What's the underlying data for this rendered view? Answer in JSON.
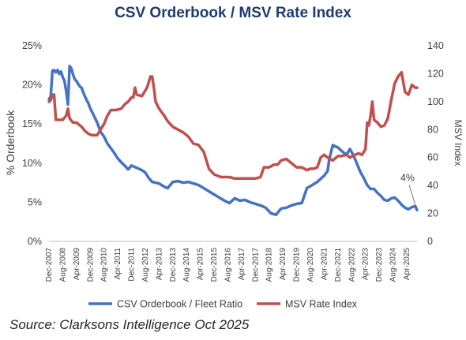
{
  "title": "CSV Orderbook / MSV Rate Index",
  "source": "Source: Clarksons Intelligence Oct 2025",
  "chart_data": {
    "type": "line",
    "title": "CSV Orderbook / MSV Rate Index",
    "x_ticks": [
      "Dec-2007",
      "Aug-2008",
      "Apr-2009",
      "Dec-2009",
      "Aug-2010",
      "Apr-2011",
      "Dec-2011",
      "Aug-2012",
      "Apr-2013",
      "Dec-2013",
      "Aug-2014",
      "Apr-2015",
      "Dec-2015",
      "Aug-2016",
      "Apr-2017",
      "Dec-2017",
      "Aug-2018",
      "Apr-2019",
      "Dec-2019",
      "Aug-2020",
      "Apr-2021",
      "Dec-2021",
      "Aug-2022",
      "Apr-2023",
      "Dec-2023",
      "Aug-2024",
      "Apr-2025"
    ],
    "x_range": [
      "2007-12",
      "2025-10"
    ],
    "y_left": {
      "label": "% Orderbook",
      "ticks": [
        "0%",
        "5%",
        "10%",
        "15%",
        "20%",
        "25%"
      ],
      "range": [
        0,
        25
      ],
      "unit": "%"
    },
    "y_right": {
      "label": "MSV Index",
      "ticks": [
        "0",
        "20",
        "40",
        "60",
        "80",
        "100",
        "120",
        "140"
      ],
      "range": [
        0,
        140
      ]
    },
    "grid": false,
    "legend_position": "bottom",
    "annotation": "4%",
    "colors": {
      "orderbook": "#4472c4",
      "msv": "#c0504d",
      "title": "#1f3b6e"
    },
    "series": [
      {
        "name": "CSV Orderbook / Fleet Ratio",
        "axis": "left",
        "points": [
          [
            "2007-12",
            18.2
          ],
          [
            "2008-01",
            18.5
          ],
          [
            "2008-02",
            21.8
          ],
          [
            "2008-03",
            21.9
          ],
          [
            "2008-04",
            21.6
          ],
          [
            "2008-05",
            21.9
          ],
          [
            "2008-06",
            21.4
          ],
          [
            "2008-07",
            21.7
          ],
          [
            "2008-08",
            21.0
          ],
          [
            "2008-09",
            20.5
          ],
          [
            "2008-10",
            19.2
          ],
          [
            "2008-11",
            17.5
          ],
          [
            "2008-12",
            22.4
          ],
          [
            "2009-01",
            22.1
          ],
          [
            "2009-02",
            21.3
          ],
          [
            "2009-03",
            20.7
          ],
          [
            "2009-04",
            20.5
          ],
          [
            "2009-05",
            20.1
          ],
          [
            "2009-06",
            19.8
          ],
          [
            "2009-07",
            19.6
          ],
          [
            "2009-08",
            19.0
          ],
          [
            "2009-09",
            18.5
          ],
          [
            "2009-10",
            18.0
          ],
          [
            "2009-11",
            17.6
          ],
          [
            "2009-12",
            17.0
          ],
          [
            "2010-02",
            16.1
          ],
          [
            "2010-04",
            15.2
          ],
          [
            "2010-06",
            14.0
          ],
          [
            "2010-08",
            13.4
          ],
          [
            "2010-10",
            12.5
          ],
          [
            "2010-12",
            11.9
          ],
          [
            "2011-02",
            11.3
          ],
          [
            "2011-04",
            10.6
          ],
          [
            "2011-06",
            10.1
          ],
          [
            "2011-08",
            9.7
          ],
          [
            "2011-10",
            9.2
          ],
          [
            "2011-12",
            9.7
          ],
          [
            "2012-02",
            9.5
          ],
          [
            "2012-04",
            9.3
          ],
          [
            "2012-06",
            9.1
          ],
          [
            "2012-08",
            8.8
          ],
          [
            "2012-10",
            8.1
          ],
          [
            "2012-12",
            7.6
          ],
          [
            "2013-04",
            7.4
          ],
          [
            "2013-07",
            7.0
          ],
          [
            "2013-09",
            6.8
          ],
          [
            "2013-12",
            7.6
          ],
          [
            "2014-03",
            7.7
          ],
          [
            "2014-06",
            7.5
          ],
          [
            "2014-09",
            7.6
          ],
          [
            "2014-12",
            7.4
          ],
          [
            "2015-03",
            7.2
          ],
          [
            "2015-06",
            6.8
          ],
          [
            "2015-09",
            6.4
          ],
          [
            "2015-12",
            6.0
          ],
          [
            "2016-03",
            5.6
          ],
          [
            "2016-06",
            5.2
          ],
          [
            "2016-09",
            4.9
          ],
          [
            "2016-12",
            5.5
          ],
          [
            "2017-03",
            5.2
          ],
          [
            "2017-06",
            5.3
          ],
          [
            "2017-09",
            5.0
          ],
          [
            "2017-12",
            4.8
          ],
          [
            "2018-03",
            4.6
          ],
          [
            "2018-06",
            4.3
          ],
          [
            "2018-09",
            3.6
          ],
          [
            "2018-12",
            3.4
          ],
          [
            "2019-03",
            4.2
          ],
          [
            "2019-06",
            4.3
          ],
          [
            "2019-09",
            4.6
          ],
          [
            "2019-12",
            4.8
          ],
          [
            "2020-03",
            4.9
          ],
          [
            "2020-06",
            6.8
          ],
          [
            "2020-09",
            7.2
          ],
          [
            "2020-12",
            7.6
          ],
          [
            "2021-02",
            8.0
          ],
          [
            "2021-04",
            8.4
          ],
          [
            "2021-06",
            9.0
          ],
          [
            "2021-07",
            10.5
          ],
          [
            "2021-09",
            12.3
          ],
          [
            "2021-12",
            12.0
          ],
          [
            "2022-03",
            11.4
          ],
          [
            "2022-05",
            11.1
          ],
          [
            "2022-07",
            11.8
          ],
          [
            "2022-09",
            11.0
          ],
          [
            "2022-10",
            10.5
          ],
          [
            "2023-01",
            8.9
          ],
          [
            "2023-03",
            8.1
          ],
          [
            "2023-05",
            7.2
          ],
          [
            "2023-07",
            6.7
          ],
          [
            "2023-09",
            6.7
          ],
          [
            "2023-11",
            6.2
          ],
          [
            "2024-01",
            5.8
          ],
          [
            "2024-03",
            5.3
          ],
          [
            "2024-05",
            5.2
          ],
          [
            "2024-07",
            5.5
          ],
          [
            "2024-09",
            5.6
          ],
          [
            "2024-11",
            5.2
          ],
          [
            "2025-01",
            4.7
          ],
          [
            "2025-03",
            4.3
          ],
          [
            "2025-05",
            4.1
          ],
          [
            "2025-07",
            4.4
          ],
          [
            "2025-09",
            4.5
          ],
          [
            "2025-10",
            4.0
          ]
        ]
      },
      {
        "name": "MSV Rate Index",
        "axis": "right",
        "points": [
          [
            "2007-12",
            100
          ],
          [
            "2008-01",
            101
          ],
          [
            "2008-02",
            105
          ],
          [
            "2008-03",
            105
          ],
          [
            "2008-04",
            87
          ],
          [
            "2008-06",
            87
          ],
          [
            "2008-08",
            87
          ],
          [
            "2008-10",
            90
          ],
          [
            "2008-11",
            95
          ],
          [
            "2008-12",
            88
          ],
          [
            "2009-02",
            85
          ],
          [
            "2009-04",
            85
          ],
          [
            "2009-06",
            83
          ],
          [
            "2009-07",
            82
          ],
          [
            "2009-09",
            79
          ],
          [
            "2009-11",
            77
          ],
          [
            "2010-01",
            76
          ],
          [
            "2010-04",
            76
          ],
          [
            "2010-06",
            80
          ],
          [
            "2010-08",
            84
          ],
          [
            "2010-10",
            90
          ],
          [
            "2010-12",
            94
          ],
          [
            "2011-03",
            94
          ],
          [
            "2011-06",
            95
          ],
          [
            "2011-08",
            98
          ],
          [
            "2011-10",
            100
          ],
          [
            "2011-12",
            103
          ],
          [
            "2012-01",
            103
          ],
          [
            "2012-02",
            110
          ],
          [
            "2012-03",
            105
          ],
          [
            "2012-06",
            104
          ],
          [
            "2012-09",
            110
          ],
          [
            "2012-11",
            118
          ],
          [
            "2012-12",
            118
          ],
          [
            "2013-01",
            110
          ],
          [
            "2013-02",
            100
          ],
          [
            "2013-04",
            95
          ],
          [
            "2013-07",
            90
          ],
          [
            "2013-09",
            86
          ],
          [
            "2013-12",
            82
          ],
          [
            "2014-03",
            80
          ],
          [
            "2014-06",
            78
          ],
          [
            "2014-09",
            75
          ],
          [
            "2014-12",
            70
          ],
          [
            "2015-03",
            69
          ],
          [
            "2015-06",
            64
          ],
          [
            "2015-09",
            52
          ],
          [
            "2015-12",
            48
          ],
          [
            "2016-02",
            47
          ],
          [
            "2016-04",
            46
          ],
          [
            "2016-06",
            46
          ],
          [
            "2016-09",
            46
          ],
          [
            "2016-12",
            45
          ],
          [
            "2017-03",
            45
          ],
          [
            "2017-06",
            45
          ],
          [
            "2017-09",
            45
          ],
          [
            "2017-12",
            45
          ],
          [
            "2018-03",
            46
          ],
          [
            "2018-05",
            53
          ],
          [
            "2018-08",
            53
          ],
          [
            "2018-11",
            55
          ],
          [
            "2019-01",
            55
          ],
          [
            "2019-03",
            58
          ],
          [
            "2019-06",
            59
          ],
          [
            "2019-09",
            56
          ],
          [
            "2019-12",
            53
          ],
          [
            "2020-03",
            53
          ],
          [
            "2020-06",
            51
          ],
          [
            "2020-08",
            52
          ],
          [
            "2020-10",
            52
          ],
          [
            "2020-12",
            53
          ],
          [
            "2021-02",
            60
          ],
          [
            "2021-04",
            62
          ],
          [
            "2021-06",
            60
          ],
          [
            "2021-09",
            58
          ],
          [
            "2021-12",
            61
          ],
          [
            "2022-02",
            61
          ],
          [
            "2022-05",
            62
          ],
          [
            "2022-07",
            60
          ],
          [
            "2022-10",
            62
          ],
          [
            "2022-12",
            63
          ],
          [
            "2023-02",
            62
          ],
          [
            "2023-04",
            66
          ],
          [
            "2023-05",
            85
          ],
          [
            "2023-06",
            83
          ],
          [
            "2023-07",
            90
          ],
          [
            "2023-08",
            100
          ],
          [
            "2023-09",
            87
          ],
          [
            "2023-11",
            85
          ],
          [
            "2024-01",
            82
          ],
          [
            "2024-03",
            83
          ],
          [
            "2024-05",
            88
          ],
          [
            "2024-07",
            101
          ],
          [
            "2024-09",
            113
          ],
          [
            "2024-11",
            118
          ],
          [
            "2025-01",
            121
          ],
          [
            "2025-03",
            107
          ],
          [
            "2025-05",
            105
          ],
          [
            "2025-07",
            112
          ],
          [
            "2025-09",
            110
          ],
          [
            "2025-10",
            110
          ]
        ]
      }
    ]
  }
}
